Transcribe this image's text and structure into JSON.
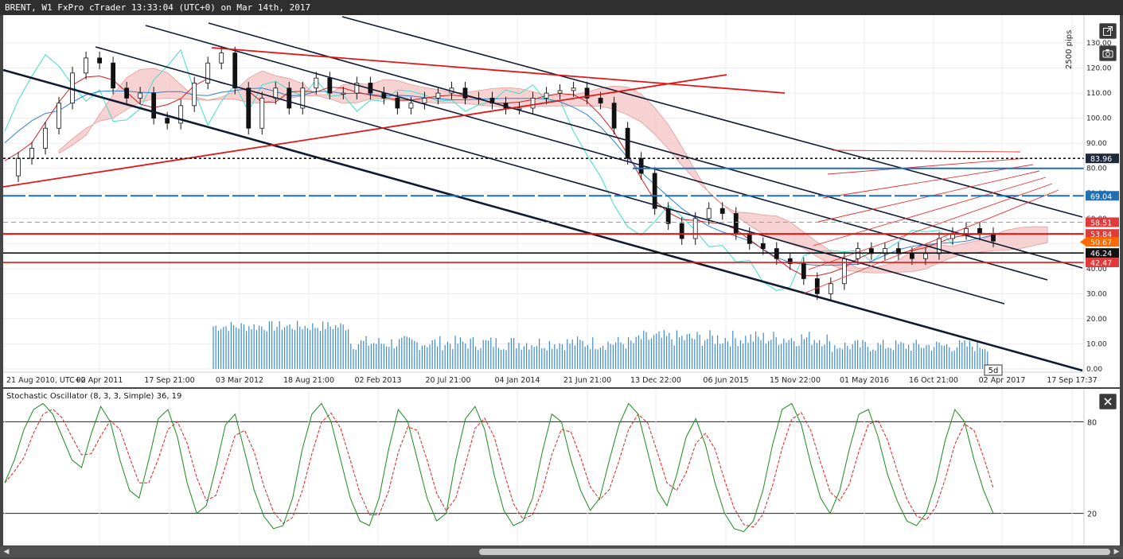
{
  "window": {
    "title": "BRENT, W1 FxPro cTrader 13:33:04 (UTC+0) on Mar 14th, 2017"
  },
  "toolbar": {
    "detach_icon": "external-link-icon",
    "screenshot_icon": "camera-icon",
    "close_icon": "close-icon"
  },
  "price_panel": {
    "scale_unit": "2500 pips",
    "axis_ticks": [
      "130.00",
      "120.00",
      "110.00",
      "100.00",
      "90.00",
      "80.00",
      "70.00",
      "60.00",
      "50.00",
      "40.00",
      "30.00",
      "20.00",
      "10.00",
      "0.00"
    ],
    "date_ticks": [
      "21 Aug 2010, UTC+0",
      "02 Apr 2011",
      "17 Sep 21:00",
      "03 Mar 2012",
      "18 Aug 21:00",
      "02 Feb 2013",
      "20 Jul 21:00",
      "04 Jan 2014",
      "21 Jun 21:00",
      "13 Dec 22:00",
      "06 Jun 2015",
      "15 Nov 22:00",
      "01 May 2016",
      "16 Oct 21:00",
      "02 Apr 2017",
      "17 Sep 17:37"
    ],
    "period_badge": "5d",
    "price_labels": [
      {
        "text": "83.96",
        "bg": "#1e2a3c",
        "color": "#ffffff"
      },
      {
        "text": "69.04",
        "bg": "#1f6fb5",
        "color": "#ffffff"
      },
      {
        "text": "58.51",
        "bg": "#e03a3a",
        "color": "#ffffff"
      },
      {
        "text": "53.84",
        "bg": "#e03a3a",
        "color": "#ffffff"
      },
      {
        "text": "50.67",
        "bg": "#ff6a00",
        "color": "#ffffff"
      },
      {
        "text": "46.24",
        "bg": "#111111",
        "color": "#ffffff"
      },
      {
        "text": "42.47",
        "bg": "#e03a3a",
        "color": "#ffffff"
      }
    ]
  },
  "stoch_panel": {
    "title": "Stochastic Oscillator (8, 3, 3, Simple) 36, 19",
    "axis_ticks": [
      "80",
      "20"
    ]
  },
  "chart_data": {
    "type": "line",
    "series_type": "candlestick-with-ichimoku-and-volume",
    "price_range": [
      0,
      135
    ],
    "closes": [
      77,
      84,
      88,
      96,
      106,
      118,
      124,
      122,
      112,
      108,
      110,
      100,
      98,
      105,
      114,
      122,
      126,
      112,
      96,
      108,
      112,
      104,
      112,
      116,
      110,
      110,
      114,
      110,
      108,
      104,
      106,
      108,
      110,
      112,
      108,
      108,
      106,
      104,
      104,
      108,
      110,
      111,
      112,
      108,
      106,
      96,
      84,
      78,
      64,
      58,
      52,
      60,
      64,
      62,
      54,
      50,
      48,
      44,
      42,
      36,
      30,
      34,
      44,
      48,
      46,
      48,
      46,
      44,
      46,
      52,
      54,
      56,
      54,
      51
    ],
    "levels": {
      "resistance_dotted": 83.96,
      "resistance_blue": 69.04,
      "red_dashed": 58.51,
      "red_solid": 53.84,
      "current": 50.67,
      "black_solid": 46.24,
      "red_lower": 42.47
    },
    "volume_range": [
      0,
      30
    ],
    "stochastic": {
      "range": [
        0,
        100
      ],
      "levels": [
        80,
        20
      ],
      "k": [
        40,
        55,
        75,
        88,
        92,
        85,
        70,
        55,
        50,
        72,
        90,
        80,
        55,
        35,
        30,
        55,
        82,
        88,
        70,
        40,
        20,
        25,
        50,
        78,
        85,
        60,
        35,
        18,
        10,
        12,
        30,
        62,
        85,
        92,
        80,
        55,
        30,
        15,
        12,
        30,
        62,
        88,
        80,
        55,
        30,
        15,
        20,
        55,
        82,
        90,
        75,
        45,
        22,
        12,
        15,
        30,
        60,
        85,
        80,
        55,
        35,
        22,
        30,
        55,
        78,
        92,
        85,
        60,
        35,
        25,
        45,
        70,
        82,
        65,
        40,
        20,
        10,
        8,
        15,
        35,
        65,
        88,
        92,
        78,
        52,
        30,
        20,
        35,
        62,
        85,
        88,
        70,
        45,
        28,
        15,
        12,
        20,
        40,
        68,
        88,
        80,
        55,
        35,
        20
      ]
    }
  }
}
